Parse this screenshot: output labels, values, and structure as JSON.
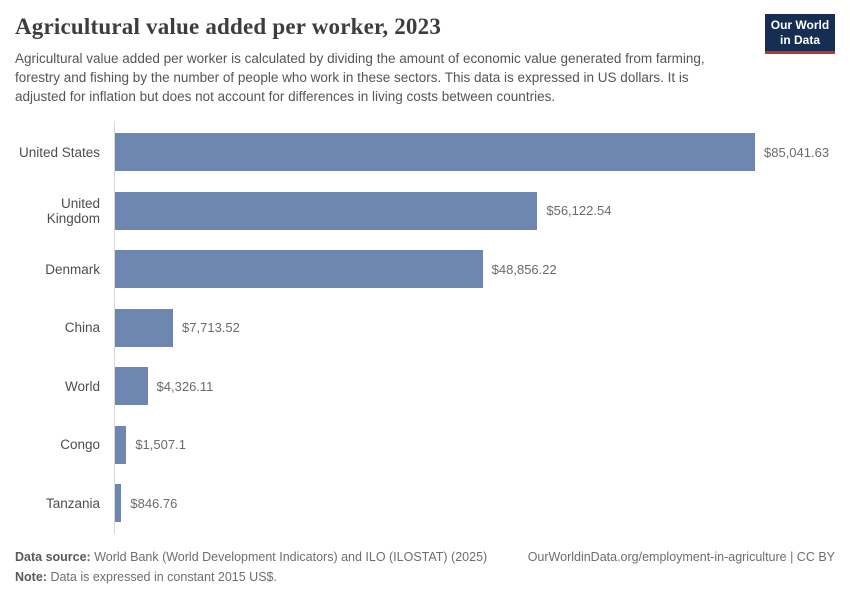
{
  "header": {
    "title": "Agricultural value added per worker, 2023",
    "subtitle": "Agricultural value added per worker is calculated by dividing the amount of economic value generated from farming, forestry and fishing by the number of people who work in these sectors. This data is expressed in US dollars. It is adjusted for inflation but does not account for differences in living costs between countries.",
    "logo_line1": "Our World",
    "logo_line2": "in Data",
    "logo_bg_color": "#152e52",
    "logo_accent_color": "#c4302b"
  },
  "chart_data": {
    "type": "bar",
    "orientation": "horizontal",
    "title": "Agricultural value added per worker, 2023",
    "categories": [
      "United States",
      "United Kingdom",
      "Denmark",
      "China",
      "World",
      "Congo",
      "Tanzania"
    ],
    "values": [
      85041.63,
      56122.54,
      48856.22,
      7713.52,
      4326.11,
      1507.1,
      846.76
    ],
    "value_labels": [
      "$85,041.63",
      "$56,122.54",
      "$48,856.22",
      "$7,713.52",
      "$4,326.11",
      "$1,507.1",
      "$846.76"
    ],
    "xlabel": "",
    "ylabel": "",
    "xlim": [
      0,
      85041.63
    ],
    "grid": false,
    "legend": false,
    "bar_color": "#6e87b0",
    "axis_color": "#d9d9d9"
  },
  "footer": {
    "source_label": "Data source:",
    "source_text": "World Bank (World Development Indicators) and ILO (ILOSTAT) (2025)",
    "url_cc": "OurWorldinData.org/employment-in-agriculture | CC BY",
    "note_label": "Note:",
    "note_text": "Data is expressed in constant 2015 US$."
  }
}
